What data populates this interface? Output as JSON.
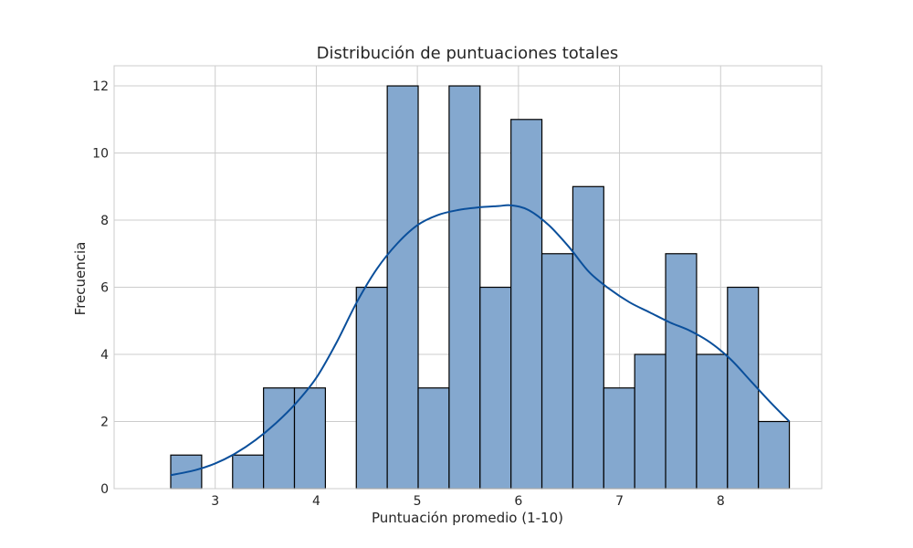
{
  "chart_data": {
    "type": "bar",
    "title": "Distribución de puntuaciones totales",
    "xlabel": "Puntuación promedio (1-10)",
    "ylabel": "Frecuencia",
    "xlim": [
      2.0,
      9.0
    ],
    "ylim": [
      0,
      12.6
    ],
    "xticks": [
      3,
      4,
      5,
      6,
      7,
      8
    ],
    "yticks": [
      0,
      2,
      4,
      6,
      8,
      10,
      12
    ],
    "grid": true,
    "bins": {
      "edges": [
        2.56,
        2.866,
        3.172,
        3.478,
        3.784,
        4.09,
        4.396,
        4.702,
        5.008,
        5.314,
        5.62,
        5.926,
        6.232,
        6.538,
        6.844,
        7.15,
        7.456,
        7.762,
        8.068,
        8.374,
        8.68
      ],
      "counts": [
        1,
        0,
        1,
        3,
        3,
        0,
        6,
        12,
        3,
        12,
        6,
        11,
        7,
        9,
        3,
        4,
        7,
        4,
        6,
        2
      ]
    },
    "kde": {
      "x": [
        2.56,
        2.8,
        3.0,
        3.2,
        3.4,
        3.6,
        3.8,
        4.0,
        4.2,
        4.4,
        4.6,
        4.8,
        5.0,
        5.2,
        5.4,
        5.6,
        5.8,
        5.93,
        6.1,
        6.3,
        6.5,
        6.7,
        6.9,
        7.1,
        7.3,
        7.5,
        7.7,
        7.9,
        8.1,
        8.3,
        8.5,
        8.68
      ],
      "y": [
        0.4,
        0.55,
        0.75,
        1.05,
        1.45,
        1.95,
        2.55,
        3.3,
        4.35,
        5.55,
        6.55,
        7.3,
        7.85,
        8.15,
        8.3,
        8.38,
        8.42,
        8.44,
        8.3,
        7.85,
        7.2,
        6.45,
        5.95,
        5.55,
        5.25,
        4.95,
        4.7,
        4.35,
        3.85,
        3.2,
        2.55,
        2.0
      ]
    },
    "colors": {
      "bar_fill": "#84a8cf",
      "bar_edge": "#000000",
      "kde_line": "#0a4f9b",
      "grid": "#cccccc",
      "frame": "#cccccc"
    }
  }
}
